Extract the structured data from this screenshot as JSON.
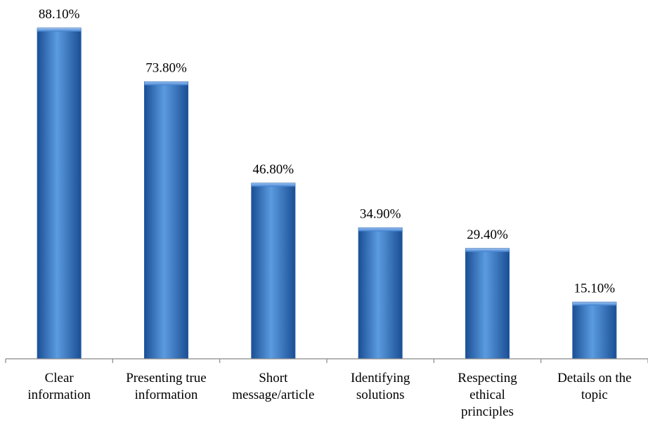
{
  "chart_data": {
    "type": "bar",
    "categories": [
      "Clear information",
      "Presenting true information",
      "Short message/article",
      "Identifying solutions",
      "Respecting ethical principles",
      "Details on the topic"
    ],
    "category_lines": [
      [
        "Clear",
        "information"
      ],
      [
        "Presenting true",
        "information"
      ],
      [
        "Short",
        "message/article"
      ],
      [
        "Identifying",
        "solutions"
      ],
      [
        "Respecting",
        "ethical",
        "principles"
      ],
      [
        "Details on the",
        "topic"
      ]
    ],
    "values": [
      88.1,
      73.8,
      46.8,
      34.9,
      29.4,
      15.1
    ],
    "data_labels": [
      "88.10%",
      "73.80%",
      "46.80%",
      "34.90%",
      "29.40%",
      "15.10%"
    ],
    "ylim": [
      0,
      100
    ],
    "grid": false,
    "legend": "none",
    "title": "",
    "xlabel": "",
    "ylabel": "",
    "colors": {
      "bar_light": "#5b9be0",
      "bar_mid": "#2e6fc4",
      "bar_dark": "#1b4f94",
      "axis": "#888888",
      "text": "#000000"
    }
  }
}
